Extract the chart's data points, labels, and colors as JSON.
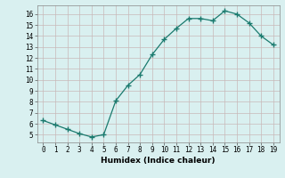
{
  "x": [
    0,
    1,
    2,
    3,
    4,
    5,
    6,
    7,
    8,
    9,
    10,
    11,
    12,
    13,
    14,
    15,
    16,
    17,
    18,
    19
  ],
  "y": [
    6.3,
    5.9,
    5.5,
    5.1,
    4.8,
    5.0,
    8.1,
    9.5,
    10.5,
    12.3,
    13.7,
    14.7,
    15.6,
    15.6,
    15.4,
    16.3,
    16.0,
    15.2,
    14.0,
    13.2
  ],
  "line_color": "#1a7a6e",
  "marker": "+",
  "marker_size": 4,
  "bg_color": "#d9f0f0",
  "grid_color_major": "#c8b8b8",
  "grid_color_minor": "#ddd0d0",
  "xlabel": "Humidex (Indice chaleur)",
  "xlim": [
    -0.5,
    19.5
  ],
  "ylim": [
    4.3,
    16.8
  ],
  "yticks": [
    5,
    6,
    7,
    8,
    9,
    10,
    11,
    12,
    13,
    14,
    15,
    16
  ],
  "xticks": [
    0,
    1,
    2,
    3,
    4,
    5,
    6,
    7,
    8,
    9,
    10,
    11,
    12,
    13,
    14,
    15,
    16,
    17,
    18,
    19
  ],
  "axis_fontsize": 6.5,
  "tick_fontsize": 5.5,
  "linewidth": 0.9,
  "marker_linewidth": 1.0
}
